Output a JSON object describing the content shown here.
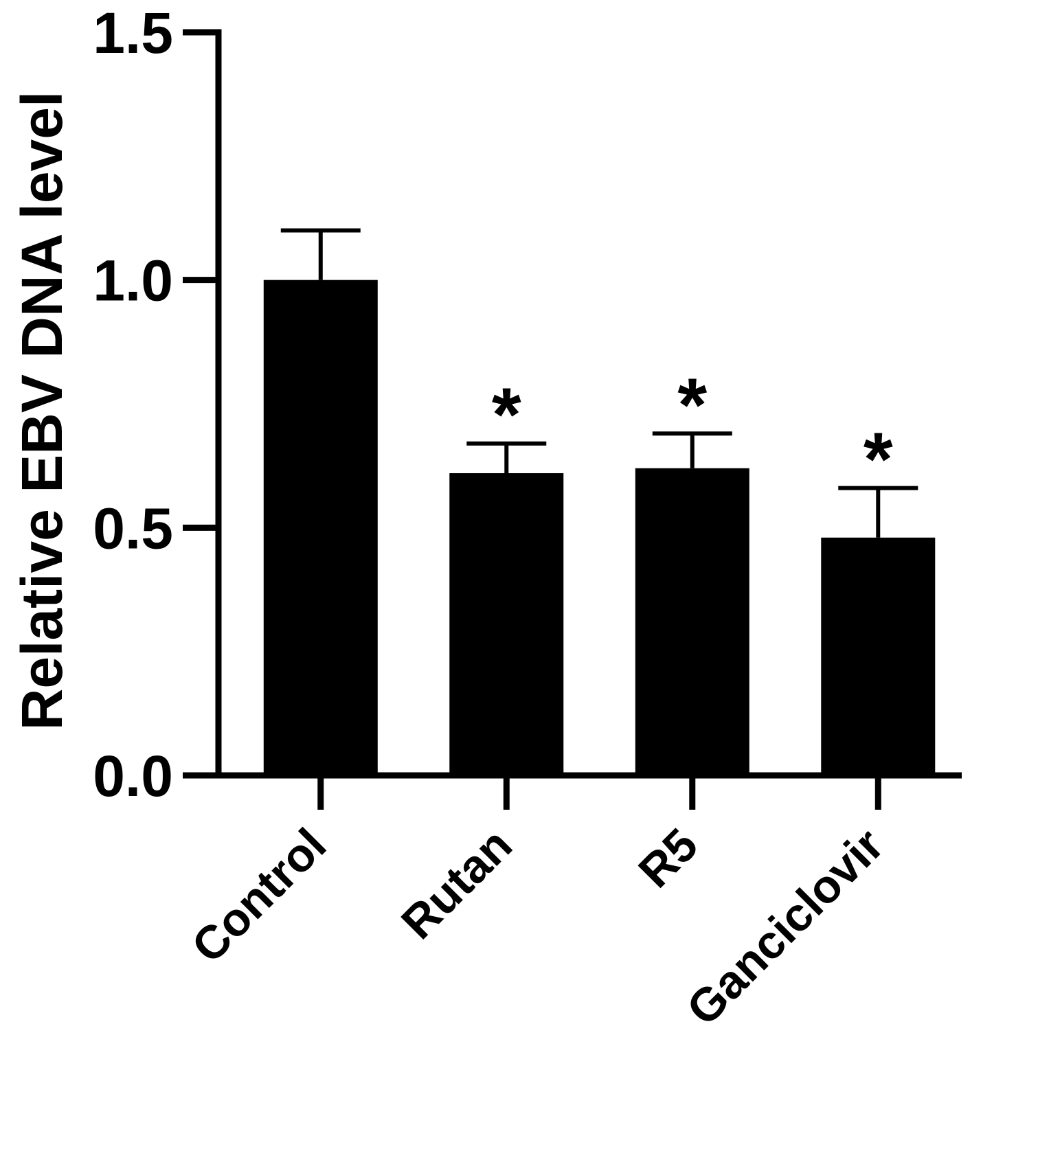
{
  "chart_data": {
    "type": "bar",
    "categories": [
      "Control",
      "Rutan",
      "R5",
      "Ganciclovir"
    ],
    "values": [
      1.0,
      0.61,
      0.62,
      0.48
    ],
    "errors": [
      0.1,
      0.06,
      0.07,
      0.1
    ],
    "significance": [
      "",
      "*",
      "*",
      "*"
    ],
    "title": "",
    "xlabel": "",
    "ylabel": "Relative EBV DNA level",
    "ylim": [
      0,
      1.5
    ],
    "yticks": [
      0.0,
      0.5,
      1.0,
      1.5
    ],
    "ytick_labels": [
      "0.0",
      "0.5",
      "1.0",
      "1.5"
    ],
    "grid": false,
    "legend": "none",
    "bar_color": "#000000"
  }
}
